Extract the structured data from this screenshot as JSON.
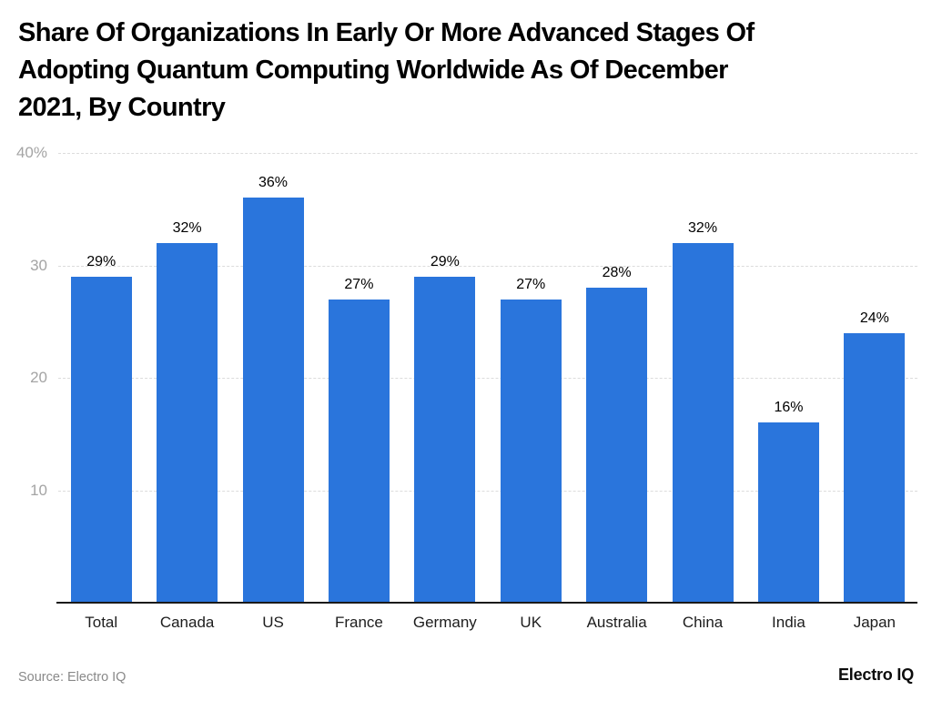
{
  "title_lines": [
    "Share Of Organizations In Early Or More Advanced Stages Of",
    "Adopting Quantum Computing Worldwide As Of December",
    "2021, By Country"
  ],
  "chart_data": {
    "type": "bar",
    "title": "Share Of Organizations In Early Or More Advanced Stages Of Adopting Quantum Computing Worldwide As Of December 2021, By Country",
    "categories": [
      "Total",
      "Canada",
      "US",
      "France",
      "Germany",
      "UK",
      "Australia",
      "China",
      "India",
      "Japan"
    ],
    "values": [
      29,
      32,
      36,
      27,
      29,
      27,
      28,
      32,
      16,
      24
    ],
    "value_labels": [
      "29%",
      "32%",
      "36%",
      "27%",
      "29%",
      "27%",
      "28%",
      "32%",
      "16%",
      "24%"
    ],
    "xlabel": "",
    "ylabel": "",
    "ylim": [
      0,
      40
    ],
    "yticks": [
      {
        "value": 40,
        "label": "40%"
      },
      {
        "value": 30,
        "label": "30"
      },
      {
        "value": 20,
        "label": "20"
      },
      {
        "value": 10,
        "label": "10"
      }
    ],
    "grid": true,
    "legend": "none",
    "bar_color": "#2a75dc",
    "grid_color": "#dcdcdc",
    "axis_line_color": "#1a1a1a",
    "tick_label_color": "#a4a4a4"
  },
  "footer": {
    "source": "Source: Electro IQ",
    "logo": "Electro IQ"
  }
}
